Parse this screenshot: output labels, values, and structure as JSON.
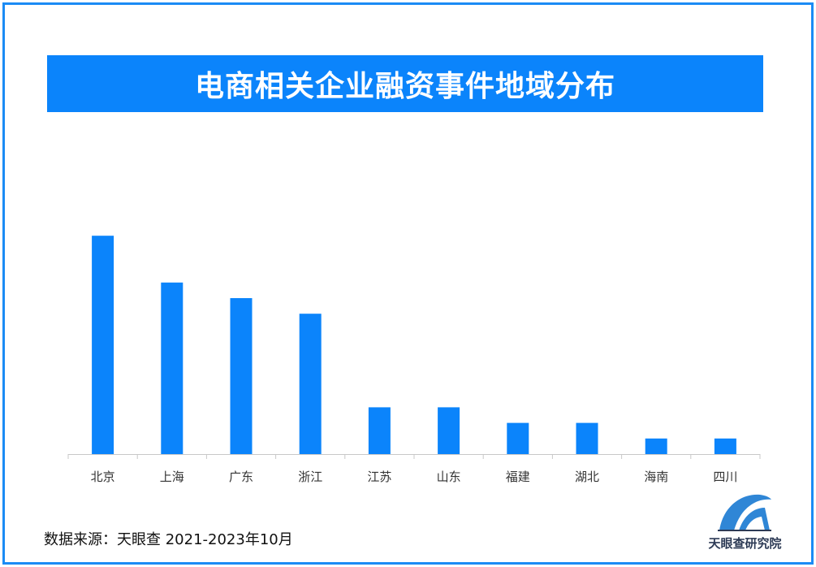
{
  "colors": {
    "border": "#1b8bf5",
    "title_bg": "#0b84fb",
    "bar": "#0b84fb",
    "axis": "#c8c8c8",
    "logo_blue": "#2f86d6",
    "logo_dark": "#2c3a55"
  },
  "footer": {
    "source": "数据来源：天眼查  2021-2023年10月"
  },
  "logo": {
    "icon": "tianyancha-logo-icon",
    "text": "天眼查研究院"
  },
  "chart_data": {
    "type": "bar",
    "title": "电商相关企业融资事件地域分布",
    "categories": [
      "北京",
      "上海",
      "广东",
      "浙江",
      "江苏",
      "山东",
      "福建",
      "湖北",
      "海南",
      "四川"
    ],
    "values": [
      14,
      11,
      10,
      9,
      3,
      3,
      2,
      2,
      1,
      1
    ],
    "ylim": [
      0,
      15
    ],
    "xlabel": "",
    "ylabel": "",
    "grid": false,
    "legend": "none"
  }
}
